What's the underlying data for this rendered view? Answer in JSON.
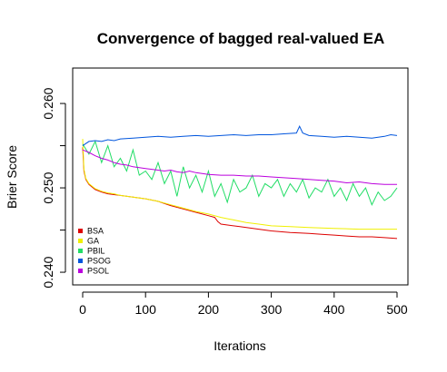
{
  "chart_data": {
    "type": "line",
    "title": "Convergence of bagged real-valued EA",
    "xlabel": "Iterations",
    "ylabel": "Brier Score",
    "xlim": [
      0,
      500
    ],
    "ylim": [
      0.2385,
      0.2642
    ],
    "x_ticks": [
      0,
      100,
      200,
      300,
      400,
      500
    ],
    "x_tick_labels": [
      "0",
      "100",
      "200",
      "300",
      "400",
      "500"
    ],
    "y_ticks": [
      0.24,
      0.245,
      0.25,
      0.255,
      0.26
    ],
    "y_tick_labels": [
      "0.240",
      "",
      "0.250",
      "",
      "0.260"
    ],
    "grid": false,
    "legend_position": "bottom-left",
    "series": [
      {
        "name": "BSA",
        "color": "#dd0000",
        "x": [
          0,
          2,
          5,
          10,
          20,
          30,
          40,
          50,
          60,
          80,
          100,
          120,
          140,
          160,
          180,
          200,
          210,
          215,
          220,
          250,
          280,
          300,
          330,
          360,
          380,
          400,
          420,
          440,
          460,
          480,
          500
        ],
        "y": [
          0.2548,
          0.252,
          0.251,
          0.2504,
          0.2498,
          0.2495,
          0.2493,
          0.2492,
          0.2491,
          0.2489,
          0.2487,
          0.2484,
          0.2479,
          0.2475,
          0.2471,
          0.2467,
          0.2465,
          0.246,
          0.2457,
          0.2454,
          0.2451,
          0.2449,
          0.2447,
          0.2446,
          0.2445,
          0.2444,
          0.2443,
          0.2442,
          0.2442,
          0.2441,
          0.244
        ]
      },
      {
        "name": "GA",
        "color": "#f0f000",
        "x": [
          0,
          2,
          5,
          10,
          20,
          30,
          40,
          50,
          60,
          80,
          100,
          120,
          140,
          160,
          180,
          200,
          220,
          240,
          260,
          280,
          300,
          330,
          360,
          400,
          440,
          500
        ],
        "y": [
          0.2558,
          0.2522,
          0.2511,
          0.2505,
          0.2499,
          0.2496,
          0.2494,
          0.2493,
          0.2491,
          0.2489,
          0.2487,
          0.2484,
          0.248,
          0.2476,
          0.2472,
          0.2469,
          0.2465,
          0.2462,
          0.2459,
          0.2457,
          0.2455,
          0.2454,
          0.2453,
          0.2452,
          0.2451,
          0.2451
        ]
      },
      {
        "name": "PBIL",
        "color": "#22dd66",
        "x": [
          0,
          10,
          20,
          30,
          40,
          50,
          60,
          70,
          80,
          90,
          100,
          110,
          120,
          130,
          140,
          150,
          160,
          170,
          180,
          190,
          200,
          210,
          220,
          230,
          240,
          250,
          260,
          270,
          280,
          290,
          300,
          310,
          320,
          330,
          340,
          350,
          360,
          370,
          380,
          390,
          400,
          410,
          420,
          430,
          440,
          450,
          460,
          470,
          480,
          490,
          500
        ],
        "y": [
          0.2552,
          0.254,
          0.2555,
          0.253,
          0.255,
          0.2525,
          0.2535,
          0.252,
          0.2545,
          0.2515,
          0.252,
          0.251,
          0.253,
          0.2505,
          0.252,
          0.249,
          0.2525,
          0.25,
          0.2515,
          0.2495,
          0.252,
          0.249,
          0.2505,
          0.2483,
          0.251,
          0.2495,
          0.25,
          0.2515,
          0.249,
          0.2505,
          0.25,
          0.251,
          0.249,
          0.2505,
          0.2495,
          0.251,
          0.2488,
          0.25,
          0.2495,
          0.251,
          0.249,
          0.25,
          0.2485,
          0.2505,
          0.249,
          0.25,
          0.248,
          0.2495,
          0.2485,
          0.249,
          0.25
        ]
      },
      {
        "name": "PSOG",
        "color": "#0055dd",
        "x": [
          0,
          10,
          20,
          30,
          40,
          50,
          60,
          80,
          100,
          120,
          140,
          160,
          180,
          200,
          220,
          240,
          260,
          280,
          300,
          320,
          340,
          345,
          350,
          360,
          380,
          400,
          420,
          440,
          460,
          470,
          480,
          490,
          500
        ],
        "y": [
          0.255,
          0.2555,
          0.2556,
          0.2555,
          0.2557,
          0.2556,
          0.2558,
          0.2559,
          0.256,
          0.2561,
          0.256,
          0.2561,
          0.2562,
          0.2561,
          0.2562,
          0.2563,
          0.2562,
          0.2563,
          0.2563,
          0.2564,
          0.2565,
          0.2573,
          0.2565,
          0.2562,
          0.2561,
          0.256,
          0.2561,
          0.256,
          0.2559,
          0.256,
          0.2561,
          0.2563,
          0.2562
        ]
      },
      {
        "name": "PSOL",
        "color": "#bb00dd",
        "x": [
          0,
          10,
          20,
          30,
          40,
          50,
          60,
          70,
          80,
          90,
          100,
          110,
          120,
          130,
          140,
          150,
          160,
          170,
          180,
          190,
          200,
          220,
          240,
          260,
          280,
          300,
          320,
          340,
          360,
          380,
          400,
          420,
          440,
          460,
          480,
          500
        ],
        "y": [
          0.2545,
          0.2542,
          0.2538,
          0.2535,
          0.2533,
          0.253,
          0.2528,
          0.2527,
          0.2525,
          0.2524,
          0.2523,
          0.2522,
          0.2521,
          0.252,
          0.2521,
          0.2519,
          0.2518,
          0.252,
          0.2518,
          0.2517,
          0.2516,
          0.2515,
          0.2515,
          0.2514,
          0.2514,
          0.2513,
          0.2512,
          0.2511,
          0.251,
          0.2509,
          0.2508,
          0.2506,
          0.2507,
          0.2505,
          0.2504,
          0.2504
        ]
      }
    ]
  }
}
